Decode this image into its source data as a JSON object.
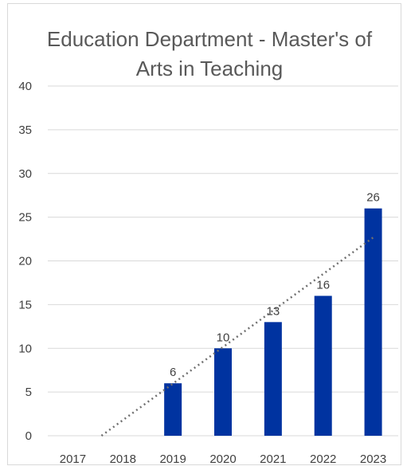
{
  "chart_data": {
    "type": "bar",
    "title_lines": [
      "Education Department - Master's of",
      "Arts in Teaching"
    ],
    "categories": [
      "2017",
      "2018",
      "2019",
      "2020",
      "2021",
      "2022",
      "2023"
    ],
    "values": [
      0,
      0,
      6,
      10,
      13,
      16,
      26
    ],
    "data_labels": [
      "",
      "",
      "6",
      "10",
      "13",
      "16",
      "26"
    ],
    "ylim": [
      0,
      40
    ],
    "yticks": [
      0,
      5,
      10,
      15,
      20,
      25,
      30,
      35,
      40
    ],
    "grid": true,
    "trendline": "linear",
    "bar_color": "#0033a0",
    "trend_color": "#707070",
    "grid_color": "#d9d9d9"
  }
}
